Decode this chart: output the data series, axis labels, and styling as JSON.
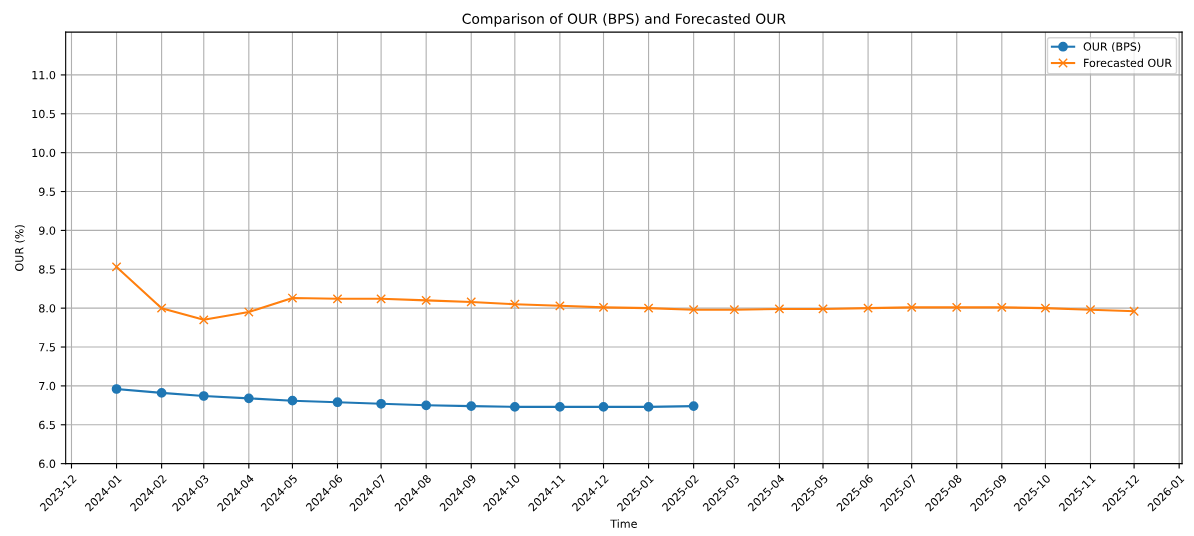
{
  "chart_data": {
    "type": "line",
    "title": "Comparison of OUR (BPS) and Forecasted OUR",
    "xlabel": "Time",
    "ylabel": "OUR (%)",
    "grid": true,
    "legend": "top right",
    "xlim": [
      "2023-11-27",
      "2026-01-03"
    ],
    "xticks": [
      {
        "value": "2023-12",
        "label": "2023-12"
      },
      {
        "value": "2024-01",
        "label": "2024-01"
      },
      {
        "value": "2024-02",
        "label": "2024-02"
      },
      {
        "value": "2024-03",
        "label": "2024-03"
      },
      {
        "value": "2024-04",
        "label": "2024-04"
      },
      {
        "value": "2024-05",
        "label": "2024-05"
      },
      {
        "value": "2024-06",
        "label": "2024-06"
      },
      {
        "value": "2024-07",
        "label": "2024-07"
      },
      {
        "value": "2024-08",
        "label": "2024-08"
      },
      {
        "value": "2024-09",
        "label": "2024-09"
      },
      {
        "value": "2024-10",
        "label": "2024-10"
      },
      {
        "value": "2024-11",
        "label": "2024-11"
      },
      {
        "value": "2024-12",
        "label": "2024-12"
      },
      {
        "value": "2025-01",
        "label": "2025-01"
      },
      {
        "value": "2025-02",
        "label": "2025-02"
      },
      {
        "value": "2025-03",
        "label": "2025-03"
      },
      {
        "value": "2025-04",
        "label": "2025-04"
      },
      {
        "value": "2025-05",
        "label": "2025-05"
      },
      {
        "value": "2025-06",
        "label": "2025-06"
      },
      {
        "value": "2025-07",
        "label": "2025-07"
      },
      {
        "value": "2025-08",
        "label": "2025-08"
      },
      {
        "value": "2025-09",
        "label": "2025-09"
      },
      {
        "value": "2025-10",
        "label": "2025-10"
      },
      {
        "value": "2025-11",
        "label": "2025-11"
      },
      {
        "value": "2025-12",
        "label": "2025-12"
      },
      {
        "value": "2026-01",
        "label": "2026-01"
      }
    ],
    "ylim": [
      6.0,
      11.55
    ],
    "yticks": [
      {
        "value": 6.0,
        "label": "6.0"
      },
      {
        "value": 6.5,
        "label": "6.5"
      },
      {
        "value": 7.0,
        "label": "7.0"
      },
      {
        "value": 7.5,
        "label": "7.5"
      },
      {
        "value": 8.0,
        "label": "8.0"
      },
      {
        "value": 8.5,
        "label": "8.5"
      },
      {
        "value": 9.0,
        "label": "9.0"
      },
      {
        "value": 9.5,
        "label": "9.5"
      },
      {
        "value": 10.0,
        "label": "10.0"
      },
      {
        "value": 10.5,
        "label": "10.5"
      },
      {
        "value": 11.0,
        "label": "11.0"
      }
    ],
    "series": [
      {
        "name": "OUR (BPS)",
        "color": "#1f77b4",
        "marker": "circle",
        "x": [
          "2024-01",
          "2024-02",
          "2024-03",
          "2024-04",
          "2024-05",
          "2024-06",
          "2024-07",
          "2024-08",
          "2024-09",
          "2024-10",
          "2024-11",
          "2024-12",
          "2025-01",
          "2025-02"
        ],
        "values": [
          6.96,
          6.91,
          6.87,
          6.84,
          6.81,
          6.79,
          6.77,
          6.75,
          6.74,
          6.73,
          6.73,
          6.73,
          6.73,
          6.74
        ]
      },
      {
        "name": "Forecasted OUR",
        "color": "#ff7f0e",
        "marker": "cross",
        "x": [
          "2024-01",
          "2024-02",
          "2024-03",
          "2024-04",
          "2024-05",
          "2024-06",
          "2024-07",
          "2024-08",
          "2024-09",
          "2024-10",
          "2024-11",
          "2024-12",
          "2025-01",
          "2025-02",
          "2025-03",
          "2025-04",
          "2025-05",
          "2025-06",
          "2025-07",
          "2025-08",
          "2025-09",
          "2025-10",
          "2025-11",
          "2025-12"
        ],
        "values": [
          8.53,
          8.0,
          7.85,
          7.95,
          8.13,
          8.12,
          8.12,
          8.1,
          8.08,
          8.05,
          8.03,
          8.01,
          8.0,
          7.98,
          7.98,
          7.99,
          7.99,
          8.0,
          8.01,
          8.01,
          8.01,
          8.0,
          7.98,
          7.96
        ]
      }
    ]
  }
}
